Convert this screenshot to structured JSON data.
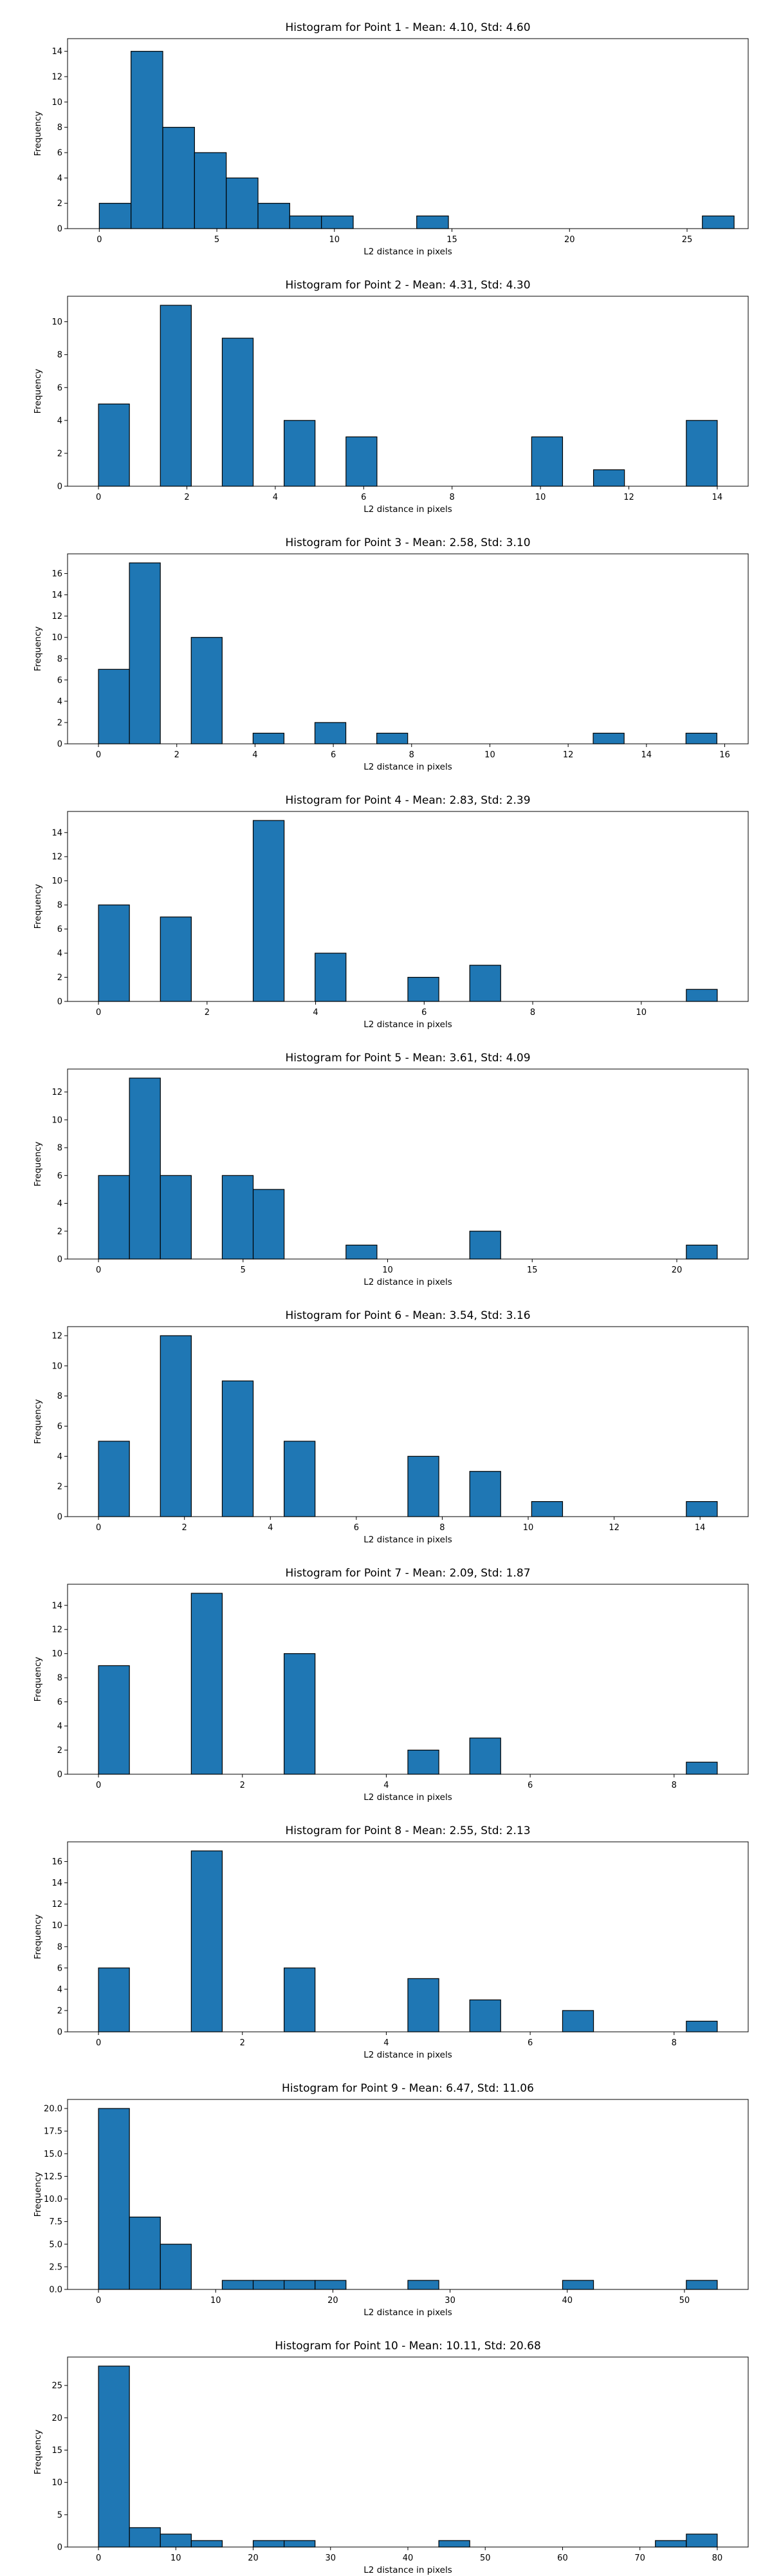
{
  "figure": {
    "bar_color": "#1f77b4",
    "edge_color": "#000000",
    "background": "#ffffff"
  },
  "chart_data": [
    {
      "type": "bar",
      "title": "Histogram for Point 1 - Mean: 4.10, Std: 4.60",
      "xlabel": "L2 distance in pixels",
      "ylabel": "Frequency",
      "grid": false,
      "xlim": [
        -1.35,
        27.6
      ],
      "ylim": [
        0,
        15
      ],
      "xticks": [
        0,
        5,
        10,
        15,
        20,
        25
      ],
      "yticks": [
        0,
        2,
        4,
        6,
        8,
        10,
        12,
        14
      ],
      "bins": [
        0,
        1.35,
        2.7,
        4.05,
        5.4,
        6.75,
        8.1,
        9.45,
        10.8,
        12.15,
        13.5,
        14.85,
        16.2,
        17.55,
        18.9,
        20.25,
        21.6,
        22.95,
        24.3,
        25.65,
        27.0
      ],
      "counts": [
        2,
        14,
        8,
        6,
        4,
        2,
        1,
        1,
        0,
        0,
        1,
        0,
        0,
        0,
        0,
        0,
        0,
        0,
        0,
        1
      ]
    },
    {
      "type": "bar",
      "title": "Histogram for Point 2 - Mean: 4.31, Std: 4.30",
      "xlabel": "L2 distance in pixels",
      "ylabel": "Frequency",
      "grid": false,
      "xlim": [
        -0.7,
        14.7
      ],
      "ylim": [
        0,
        11.55
      ],
      "xticks": [
        0,
        2,
        4,
        6,
        8,
        10,
        12,
        14
      ],
      "yticks": [
        0,
        2,
        4,
        6,
        8,
        10
      ],
      "bins": [
        0,
        0.7,
        1.4,
        2.1,
        2.8,
        3.5,
        4.2,
        4.9,
        5.6,
        6.3,
        7.0,
        7.7,
        8.4,
        9.1,
        9.8,
        10.5,
        11.2,
        11.9,
        12.6,
        13.3,
        14.0
      ],
      "counts": [
        5,
        0,
        11,
        0,
        9,
        0,
        4,
        0,
        3,
        0,
        0,
        0,
        0,
        0,
        3,
        0,
        1,
        0,
        0,
        4
      ]
    },
    {
      "type": "bar",
      "title": "Histogram for Point 3 - Mean: 2.58, Std: 3.10",
      "xlabel": "L2 distance in pixels",
      "ylabel": "Frequency",
      "grid": false,
      "xlim": [
        -0.79,
        16.6
      ],
      "ylim": [
        0,
        17.85
      ],
      "xticks": [
        0,
        2,
        4,
        6,
        8,
        10,
        12,
        14,
        16
      ],
      "yticks": [
        0,
        2,
        4,
        6,
        8,
        10,
        12,
        14,
        16
      ],
      "bins": [
        0,
        0.79,
        1.58,
        2.37,
        3.16,
        3.95,
        4.74,
        5.53,
        6.32,
        7.11,
        7.9,
        8.69,
        9.48,
        10.27,
        11.06,
        11.85,
        12.64,
        13.43,
        14.22,
        15.01,
        15.8
      ],
      "counts": [
        7,
        17,
        0,
        10,
        0,
        1,
        0,
        2,
        0,
        1,
        0,
        0,
        0,
        0,
        0,
        0,
        1,
        0,
        0,
        1
      ]
    },
    {
      "type": "bar",
      "title": "Histogram for Point 4 - Mean: 2.83, Std: 2.39",
      "xlabel": "L2 distance in pixels",
      "ylabel": "Frequency",
      "grid": false,
      "xlim": [
        -0.57,
        11.97
      ],
      "ylim": [
        0,
        15.75
      ],
      "xticks": [
        0,
        2,
        4,
        6,
        8,
        10
      ],
      "yticks": [
        0,
        2,
        4,
        6,
        8,
        10,
        12,
        14
      ],
      "bins": [
        0,
        0.57,
        1.14,
        1.71,
        2.28,
        2.85,
        3.42,
        3.99,
        4.56,
        5.13,
        5.7,
        6.27,
        6.84,
        7.41,
        7.98,
        8.55,
        9.12,
        9.69,
        10.26,
        10.83,
        11.4
      ],
      "counts": [
        8,
        0,
        7,
        0,
        0,
        15,
        0,
        4,
        0,
        0,
        2,
        0,
        3,
        0,
        0,
        0,
        0,
        0,
        0,
        1
      ]
    },
    {
      "type": "bar",
      "title": "Histogram for Point 5 - Mean: 3.61, Std: 4.09",
      "xlabel": "L2 distance in pixels",
      "ylabel": "Frequency",
      "grid": false,
      "xlim": [
        -1.07,
        22.47
      ],
      "ylim": [
        0,
        13.65
      ],
      "xticks": [
        0,
        5,
        10,
        15,
        20
      ],
      "yticks": [
        0,
        2,
        4,
        6,
        8,
        10,
        12
      ],
      "bins": [
        0,
        1.07,
        2.14,
        3.21,
        4.28,
        5.35,
        6.42,
        7.49,
        8.56,
        9.63,
        10.7,
        11.77,
        12.84,
        13.91,
        14.98,
        16.05,
        17.12,
        18.19,
        19.26,
        20.33,
        21.4
      ],
      "counts": [
        6,
        13,
        6,
        0,
        6,
        5,
        0,
        0,
        1,
        0,
        0,
        0,
        2,
        0,
        0,
        0,
        0,
        0,
        0,
        1
      ]
    },
    {
      "type": "bar",
      "title": "Histogram for Point 6 - Mean: 3.54, Std: 3.16",
      "xlabel": "L2 distance in pixels",
      "ylabel": "Frequency",
      "grid": false,
      "xlim": [
        -0.72,
        15.12
      ],
      "ylim": [
        0,
        12.6
      ],
      "xticks": [
        0,
        2,
        4,
        6,
        8,
        10,
        12,
        14
      ],
      "yticks": [
        0,
        2,
        4,
        6,
        8,
        10,
        12
      ],
      "bins": [
        0,
        0.72,
        1.44,
        2.16,
        2.88,
        3.6,
        4.32,
        5.04,
        5.76,
        6.48,
        7.2,
        7.92,
        8.64,
        9.36,
        10.08,
        10.8,
        11.52,
        12.24,
        12.96,
        13.68,
        14.4
      ],
      "counts": [
        5,
        0,
        12,
        0,
        9,
        0,
        5,
        0,
        0,
        0,
        4,
        0,
        3,
        0,
        1,
        0,
        0,
        0,
        0,
        1
      ]
    },
    {
      "type": "bar",
      "title": "Histogram for Point 7 - Mean: 2.09, Std: 1.87",
      "xlabel": "L2 distance in pixels",
      "ylabel": "Frequency",
      "grid": false,
      "xlim": [
        -0.43,
        9.03
      ],
      "ylim": [
        0,
        15.75
      ],
      "xticks": [
        0,
        2,
        4,
        6,
        8
      ],
      "yticks": [
        0,
        2,
        4,
        6,
        8,
        10,
        12,
        14
      ],
      "bins": [
        0,
        0.43,
        0.86,
        1.29,
        1.72,
        2.15,
        2.58,
        3.01,
        3.44,
        3.87,
        4.3,
        4.73,
        5.16,
        5.59,
        6.02,
        6.45,
        6.88,
        7.31,
        7.74,
        8.17,
        8.6
      ],
      "counts": [
        9,
        0,
        0,
        15,
        0,
        0,
        10,
        0,
        0,
        0,
        2,
        0,
        3,
        0,
        0,
        0,
        0,
        0,
        0,
        1
      ]
    },
    {
      "type": "bar",
      "title": "Histogram for Point 8 - Mean: 2.55, Std: 2.13",
      "xlabel": "L2 distance in pixels",
      "ylabel": "Frequency",
      "grid": false,
      "xlim": [
        -0.43,
        9.03
      ],
      "ylim": [
        0,
        17.85
      ],
      "xticks": [
        0,
        2,
        4,
        6,
        8
      ],
      "yticks": [
        0,
        2,
        4,
        6,
        8,
        10,
        12,
        14,
        16
      ],
      "bins": [
        0,
        0.43,
        0.86,
        1.29,
        1.72,
        2.15,
        2.58,
        3.01,
        3.44,
        3.87,
        4.3,
        4.73,
        5.16,
        5.59,
        6.02,
        6.45,
        6.88,
        7.31,
        7.74,
        8.17,
        8.6
      ],
      "counts": [
        6,
        0,
        0,
        17,
        0,
        0,
        6,
        0,
        0,
        0,
        5,
        0,
        3,
        0,
        0,
        2,
        0,
        0,
        0,
        1
      ]
    },
    {
      "type": "bar",
      "title": "Histogram for Point 9 - Mean: 6.47, Std: 11.06",
      "xlabel": "L2 distance in pixels",
      "ylabel": "Frequency",
      "grid": false,
      "xlim": [
        -2.64,
        55.44
      ],
      "ylim": [
        0,
        21
      ],
      "xticks": [
        0,
        10,
        20,
        30,
        40,
        50
      ],
      "ytick_labels": [
        "0.0",
        "2.5",
        "5.0",
        "7.5",
        "10.0",
        "12.5",
        "15.0",
        "17.5",
        "20.0"
      ],
      "yticks": [
        0,
        2.5,
        5,
        7.5,
        10,
        12.5,
        15,
        17.5,
        20
      ],
      "bins": [
        0,
        2.64,
        5.28,
        7.92,
        10.56,
        13.2,
        15.84,
        18.48,
        21.12,
        23.76,
        26.4,
        29.04,
        31.68,
        34.32,
        36.96,
        39.6,
        42.24,
        44.88,
        47.52,
        50.16,
        52.8
      ],
      "counts": [
        20,
        8,
        5,
        0,
        1,
        1,
        1,
        1,
        0,
        0,
        1,
        0,
        0,
        0,
        0,
        1,
        0,
        0,
        0,
        1
      ]
    },
    {
      "type": "bar",
      "title": "Histogram for Point 10 - Mean: 10.11, Std: 20.68",
      "xlabel": "L2 distance in pixels",
      "ylabel": "Frequency",
      "grid": false,
      "xlim": [
        -4.0,
        84.0
      ],
      "ylim": [
        0,
        29.4
      ],
      "xticks": [
        0,
        10,
        20,
        30,
        40,
        50,
        60,
        70,
        80
      ],
      "yticks": [
        0,
        5,
        10,
        15,
        20,
        25
      ],
      "bins": [
        0,
        4,
        8,
        12,
        16,
        20,
        24,
        28,
        32,
        36,
        40,
        44,
        48,
        52,
        56,
        60,
        64,
        68,
        72,
        76,
        80
      ],
      "counts": [
        28,
        3,
        2,
        1,
        0,
        1,
        1,
        0,
        0,
        0,
        0,
        1,
        0,
        0,
        0,
        0,
        0,
        0,
        1,
        2
      ]
    }
  ]
}
